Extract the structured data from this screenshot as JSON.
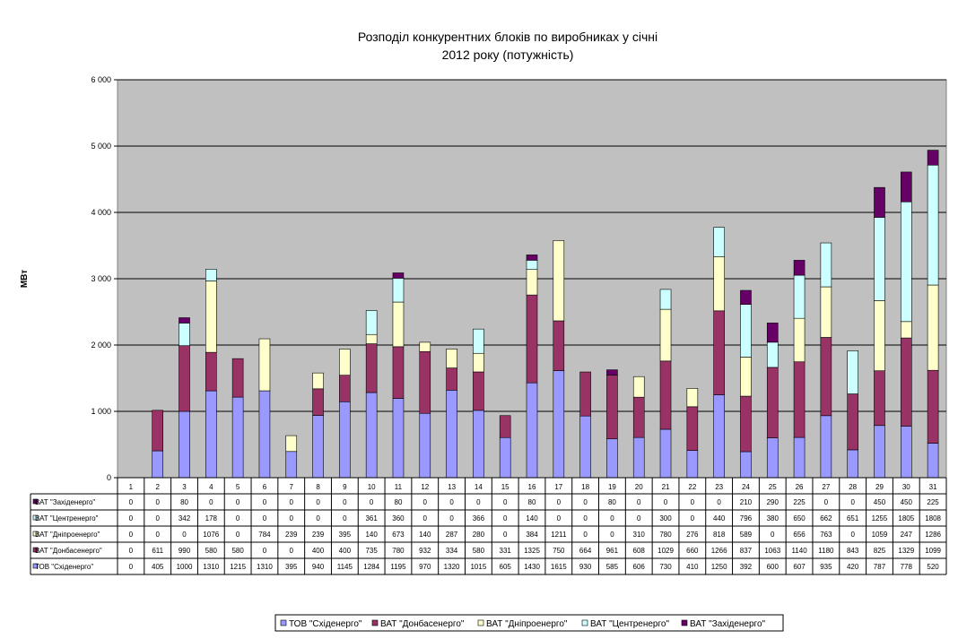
{
  "chart_data": {
    "type": "bar",
    "stacked": true,
    "title": [
      "Розподіл конкурентних блоків по виробниках у січні",
      "2012 року (потужність)"
    ],
    "ylabel": "МВт",
    "ylim": [
      0,
      6000
    ],
    "yticks": [
      "0",
      "1 000",
      "2 000",
      "3 000",
      "4 000",
      "5 000",
      "6 000"
    ],
    "ytick_values": [
      0,
      1000,
      2000,
      3000,
      4000,
      5000,
      6000
    ],
    "grid": true,
    "legend_position": "bottom",
    "categories": [
      "1",
      "2",
      "3",
      "4",
      "5",
      "6",
      "7",
      "8",
      "9",
      "10",
      "11",
      "12",
      "13",
      "14",
      "15",
      "16",
      "17",
      "18",
      "19",
      "20",
      "21",
      "22",
      "23",
      "24",
      "25",
      "26",
      "27",
      "28",
      "29",
      "30",
      "31"
    ],
    "series": [
      {
        "name": "ТОВ \"Східенерго\"",
        "color": "#9999ff",
        "values": [
          0,
          405,
          1000,
          1310,
          1215,
          1310,
          395,
          940,
          1145,
          1284,
          1195,
          970,
          1320,
          1015,
          605,
          1430,
          1615,
          930,
          585,
          606,
          730,
          410,
          1250,
          392,
          600,
          607,
          935,
          420,
          787,
          778,
          520
        ]
      },
      {
        "name": "ВАТ \"Донбасенерго\"",
        "color": "#993366",
        "values": [
          0,
          611,
          990,
          580,
          580,
          0,
          0,
          400,
          400,
          735,
          780,
          932,
          334,
          580,
          331,
          1325,
          750,
          664,
          961,
          608,
          1029,
          660,
          1266,
          837,
          1063,
          1140,
          1180,
          843,
          825,
          1329,
          1099
        ]
      },
      {
        "name": "ВАТ \"Дніпроенерго\"",
        "color": "#ffffcc",
        "values": [
          0,
          0,
          0,
          1076,
          0,
          784,
          239,
          239,
          395,
          140,
          673,
          140,
          287,
          280,
          0,
          384,
          1211,
          0,
          0,
          310,
          780,
          276,
          818,
          589,
          0,
          656,
          763,
          0,
          1059,
          247,
          1286
        ]
      },
      {
        "name": "ВАТ \"Центренерго\"",
        "color": "#ccffff",
        "values": [
          0,
          0,
          342,
          178,
          0,
          0,
          0,
          0,
          0,
          361,
          360,
          0,
          0,
          366,
          0,
          140,
          0,
          0,
          0,
          0,
          300,
          0,
          440,
          796,
          380,
          650,
          662,
          651,
          1255,
          1805,
          1808
        ]
      },
      {
        "name": "ВАТ \"Західенерго\"",
        "color": "#660066",
        "values": [
          0,
          0,
          80,
          0,
          0,
          0,
          0,
          0,
          0,
          0,
          80,
          0,
          0,
          0,
          0,
          80,
          0,
          0,
          80,
          0,
          0,
          0,
          0,
          210,
          290,
          225,
          0,
          0,
          450,
          450,
          225
        ]
      }
    ],
    "table_row_order": [
      4,
      3,
      2,
      1,
      0
    ]
  }
}
